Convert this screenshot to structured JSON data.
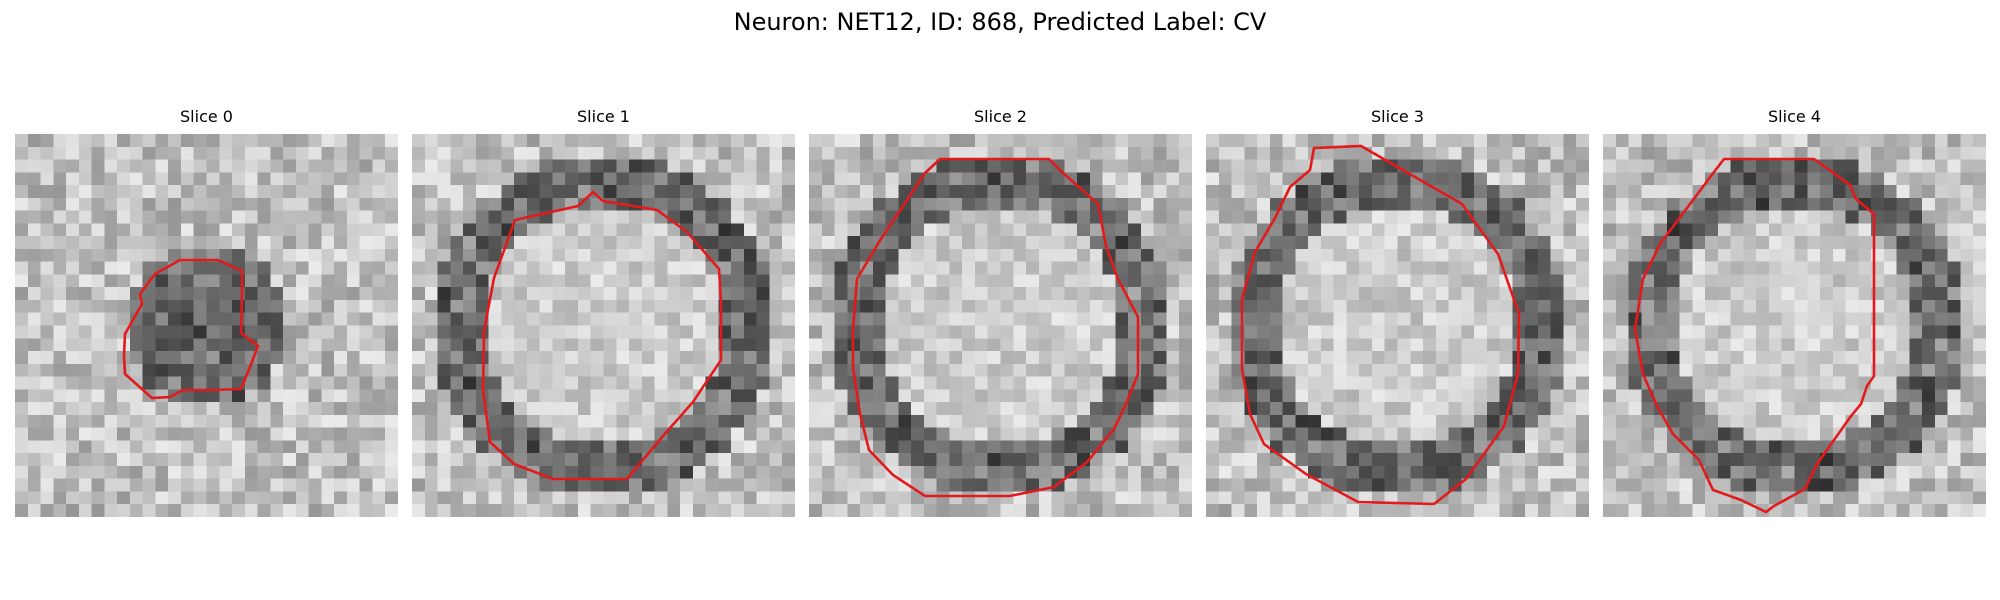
{
  "figure": {
    "title": "Neuron: NET12, ID: 868, Predicted Label: CV",
    "contour_color": "#e31a1c",
    "colormap": "gray",
    "panels": [
      {
        "title": "Slice 0",
        "dark_center": true
      },
      {
        "title": "Slice 1",
        "dark_center": false
      },
      {
        "title": "Slice 2",
        "dark_center": false
      },
      {
        "title": "Slice 3",
        "dark_center": false
      },
      {
        "title": "Slice 4",
        "dark_center": false
      }
    ]
  }
}
